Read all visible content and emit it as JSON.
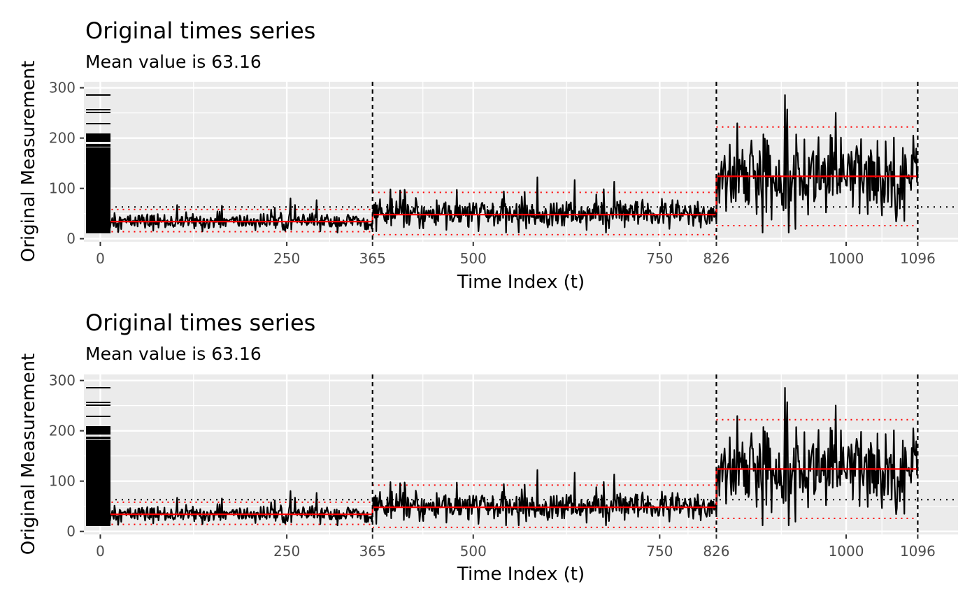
{
  "chart_data": [
    {
      "type": "line",
      "title": "Original times series",
      "subtitle": "Mean value is 63.16",
      "xlabel": "Time Index (t)",
      "ylabel": "Original Measurement",
      "xlim": [
        -22,
        1150
      ],
      "ylim": [
        -6,
        312
      ],
      "x_ticks": [
        "0",
        "250",
        "365",
        "500",
        "750",
        "826",
        "1000",
        "1096"
      ],
      "x_tick_values": [
        0,
        250,
        365,
        500,
        750,
        826,
        1000,
        1096
      ],
      "y_ticks": [
        "0",
        "100",
        "200",
        "300"
      ],
      "y_tick_values": [
        0,
        100,
        200,
        300
      ],
      "mean_value": 63.16,
      "change_points": [
        365,
        826,
        1096
      ],
      "segments": [
        {
          "start": 0,
          "end": 365,
          "mean": 34,
          "lower": 14,
          "upper": 58,
          "sd": 8
        },
        {
          "start": 365,
          "end": 826,
          "mean": 48,
          "lower": 8,
          "upper": 92,
          "sd": 15
        },
        {
          "start": 826,
          "end": 1096,
          "mean": 124,
          "lower": 26,
          "upper": 222,
          "sd": 40
        }
      ],
      "grid": true,
      "colors": {
        "series": "#000000",
        "segment_mean": "#ff0000",
        "segment_bounds": "#ff0000",
        "change_point": "#000000",
        "overall_mean": "#000000",
        "panel": "#ebebeb",
        "grid": "#ffffff"
      }
    },
    {
      "type": "line",
      "title": "Original times series",
      "subtitle": "Mean value is 63.16",
      "xlabel": "Time Index (t)",
      "ylabel": "Original Measurement",
      "xlim": [
        -22,
        1150
      ],
      "ylim": [
        -6,
        312
      ],
      "x_ticks": [
        "0",
        "250",
        "365",
        "500",
        "750",
        "826",
        "1000",
        "1096"
      ],
      "x_tick_values": [
        0,
        250,
        365,
        500,
        750,
        826,
        1000,
        1096
      ],
      "y_ticks": [
        "0",
        "100",
        "200",
        "300"
      ],
      "y_tick_values": [
        0,
        100,
        200,
        300
      ],
      "mean_value": 63.16,
      "change_points": [
        365,
        826,
        1096
      ],
      "segments": [
        {
          "start": 0,
          "end": 365,
          "mean": 34,
          "lower": 14,
          "upper": 58,
          "sd": 8
        },
        {
          "start": 365,
          "end": 826,
          "mean": 48,
          "lower": 8,
          "upper": 92,
          "sd": 15
        },
        {
          "start": 826,
          "end": 1096,
          "mean": 124,
          "lower": 26,
          "upper": 222,
          "sd": 40
        }
      ],
      "grid": true,
      "colors": {
        "series": "#000000",
        "segment_mean": "#ff0000",
        "segment_bounds": "#ff0000",
        "change_point": "#000000",
        "overall_mean": "#000000",
        "panel": "#ebebeb",
        "grid": "#ffffff"
      }
    }
  ]
}
